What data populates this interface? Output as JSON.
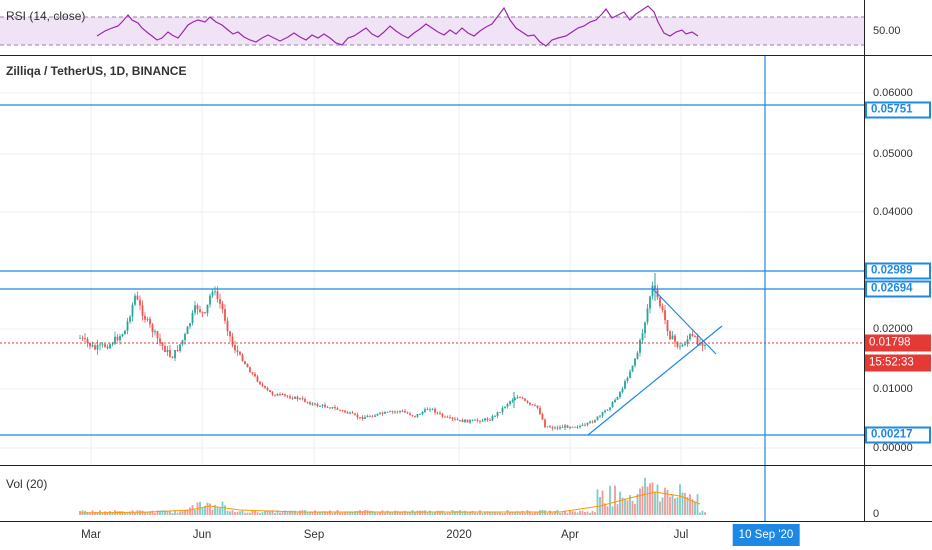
{
  "rsi": {
    "title": "RSI (14, close)",
    "ticks": [
      "50.00"
    ]
  },
  "main": {
    "title": "Zilliqa / TetherUS, 1D, BINANCE",
    "ticks": [
      "0.06000",
      "0.05000",
      "0.04000",
      "0.02000",
      "0.01000",
      "0.00000"
    ],
    "badges": {
      "level_1": "0.05751",
      "level_2": "0.02989",
      "level_3": "0.02694",
      "level_4": "0.00217",
      "last_price": "0.01798",
      "countdown": "15:52:33"
    }
  },
  "volume": {
    "title": "Vol (20)",
    "ticks": [
      "0"
    ]
  },
  "time_axis": {
    "labels": [
      "Mar",
      "Jun",
      "Sep",
      "2020",
      "Apr",
      "Jul"
    ],
    "crosshair_date": "10 Sep '20"
  },
  "colors": {
    "up": "#26a69a",
    "down": "#ef5350",
    "rsi_line": "#9c27b0",
    "rsi_band": "#f3e5f5",
    "drawing": "#1e88e5",
    "last_price": "#e53935"
  }
}
